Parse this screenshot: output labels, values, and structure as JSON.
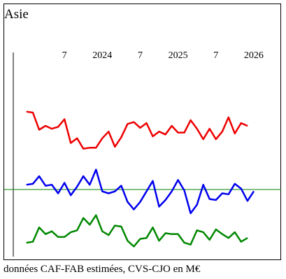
{
  "chart_data": {
    "type": "line",
    "title": "Asie",
    "caption": "données CAF-FAB estimées, CVS-CJO en M€",
    "x_tick_labels": [
      "7",
      "2024",
      "7",
      "2025",
      "7",
      "2026"
    ],
    "x_start": "2023-01",
    "n_points": 41,
    "series": [
      {
        "color": "#ee0000",
        "values": [
          0.82,
          0.81,
          0.63,
          0.67,
          0.64,
          0.66,
          0.74,
          0.49,
          0.54,
          0.43,
          0.44,
          0.44,
          0.54,
          0.61,
          0.45,
          0.55,
          0.69,
          0.71,
          0.65,
          0.7,
          0.56,
          0.61,
          0.58,
          0.67,
          0.6,
          0.6,
          0.73,
          0.64,
          0.53,
          0.64,
          0.53,
          0.61,
          0.76,
          0.59,
          0.7,
          0.67
        ]
      },
      {
        "color": "#0000ee",
        "values": [
          0.05,
          0.06,
          0.14,
          0.04,
          0.05,
          -0.04,
          0.07,
          -0.06,
          0.03,
          0.14,
          0.05,
          0.21,
          -0.02,
          -0.04,
          -0.02,
          0.04,
          -0.13,
          -0.21,
          -0.13,
          -0.02,
          0.09,
          -0.18,
          -0.11,
          -0.02,
          0.1,
          -0.01,
          -0.25,
          -0.16,
          0.05,
          -0.1,
          -0.11,
          -0.04,
          -0.05,
          0.06,
          0.01,
          -0.12,
          -0.02
        ]
      },
      {
        "color": "#008800",
        "values": [
          -0.56,
          -0.55,
          -0.4,
          -0.47,
          -0.44,
          -0.5,
          -0.5,
          -0.45,
          -0.43,
          -0.3,
          -0.37,
          -0.27,
          -0.44,
          -0.48,
          -0.38,
          -0.39,
          -0.54,
          -0.6,
          -0.52,
          -0.51,
          -0.4,
          -0.54,
          -0.46,
          -0.47,
          -0.47,
          -0.56,
          -0.58,
          -0.43,
          -0.45,
          -0.53,
          -0.42,
          -0.47,
          -0.51,
          -0.45,
          -0.55,
          -0.51
        ]
      }
    ],
    "zero_line": true,
    "x_range": [
      0,
      40
    ],
    "y_range": [
      -0.67,
      1.37
    ]
  }
}
